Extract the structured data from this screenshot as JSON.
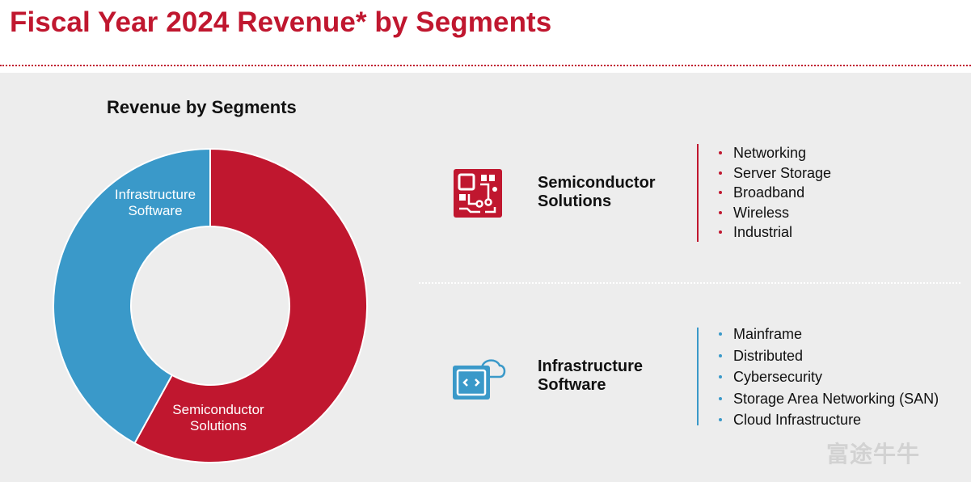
{
  "page": {
    "title": "Fiscal Year 2024 Revenue* by Segments",
    "watermark": "富途牛牛"
  },
  "chart_data": {
    "type": "pie",
    "title": "Revenue by Segments",
    "donut": true,
    "slices": [
      {
        "label_lines": [
          "Semiconductor",
          "Solutions"
        ],
        "value": 58,
        "color": "#c0172f"
      },
      {
        "label_lines": [
          "Infrastructure",
          "Software"
        ],
        "value": 42,
        "color": "#3a99c9"
      }
    ]
  },
  "segments": [
    {
      "name_lines": [
        "Semiconductor",
        "Solutions"
      ],
      "icon": "circuit-chip-icon",
      "color": "#c0172f",
      "items": [
        "Networking",
        "Server Storage",
        "Broadband",
        "Wireless",
        "Industrial"
      ]
    },
    {
      "name_lines": [
        "Infrastructure",
        "Software"
      ],
      "icon": "cloud-code-icon",
      "color": "#3a99c9",
      "items": [
        "Mainframe",
        "Distributed",
        "Cybersecurity",
        "Storage Area Networking (SAN)",
        "Cloud Infrastructure"
      ]
    }
  ]
}
